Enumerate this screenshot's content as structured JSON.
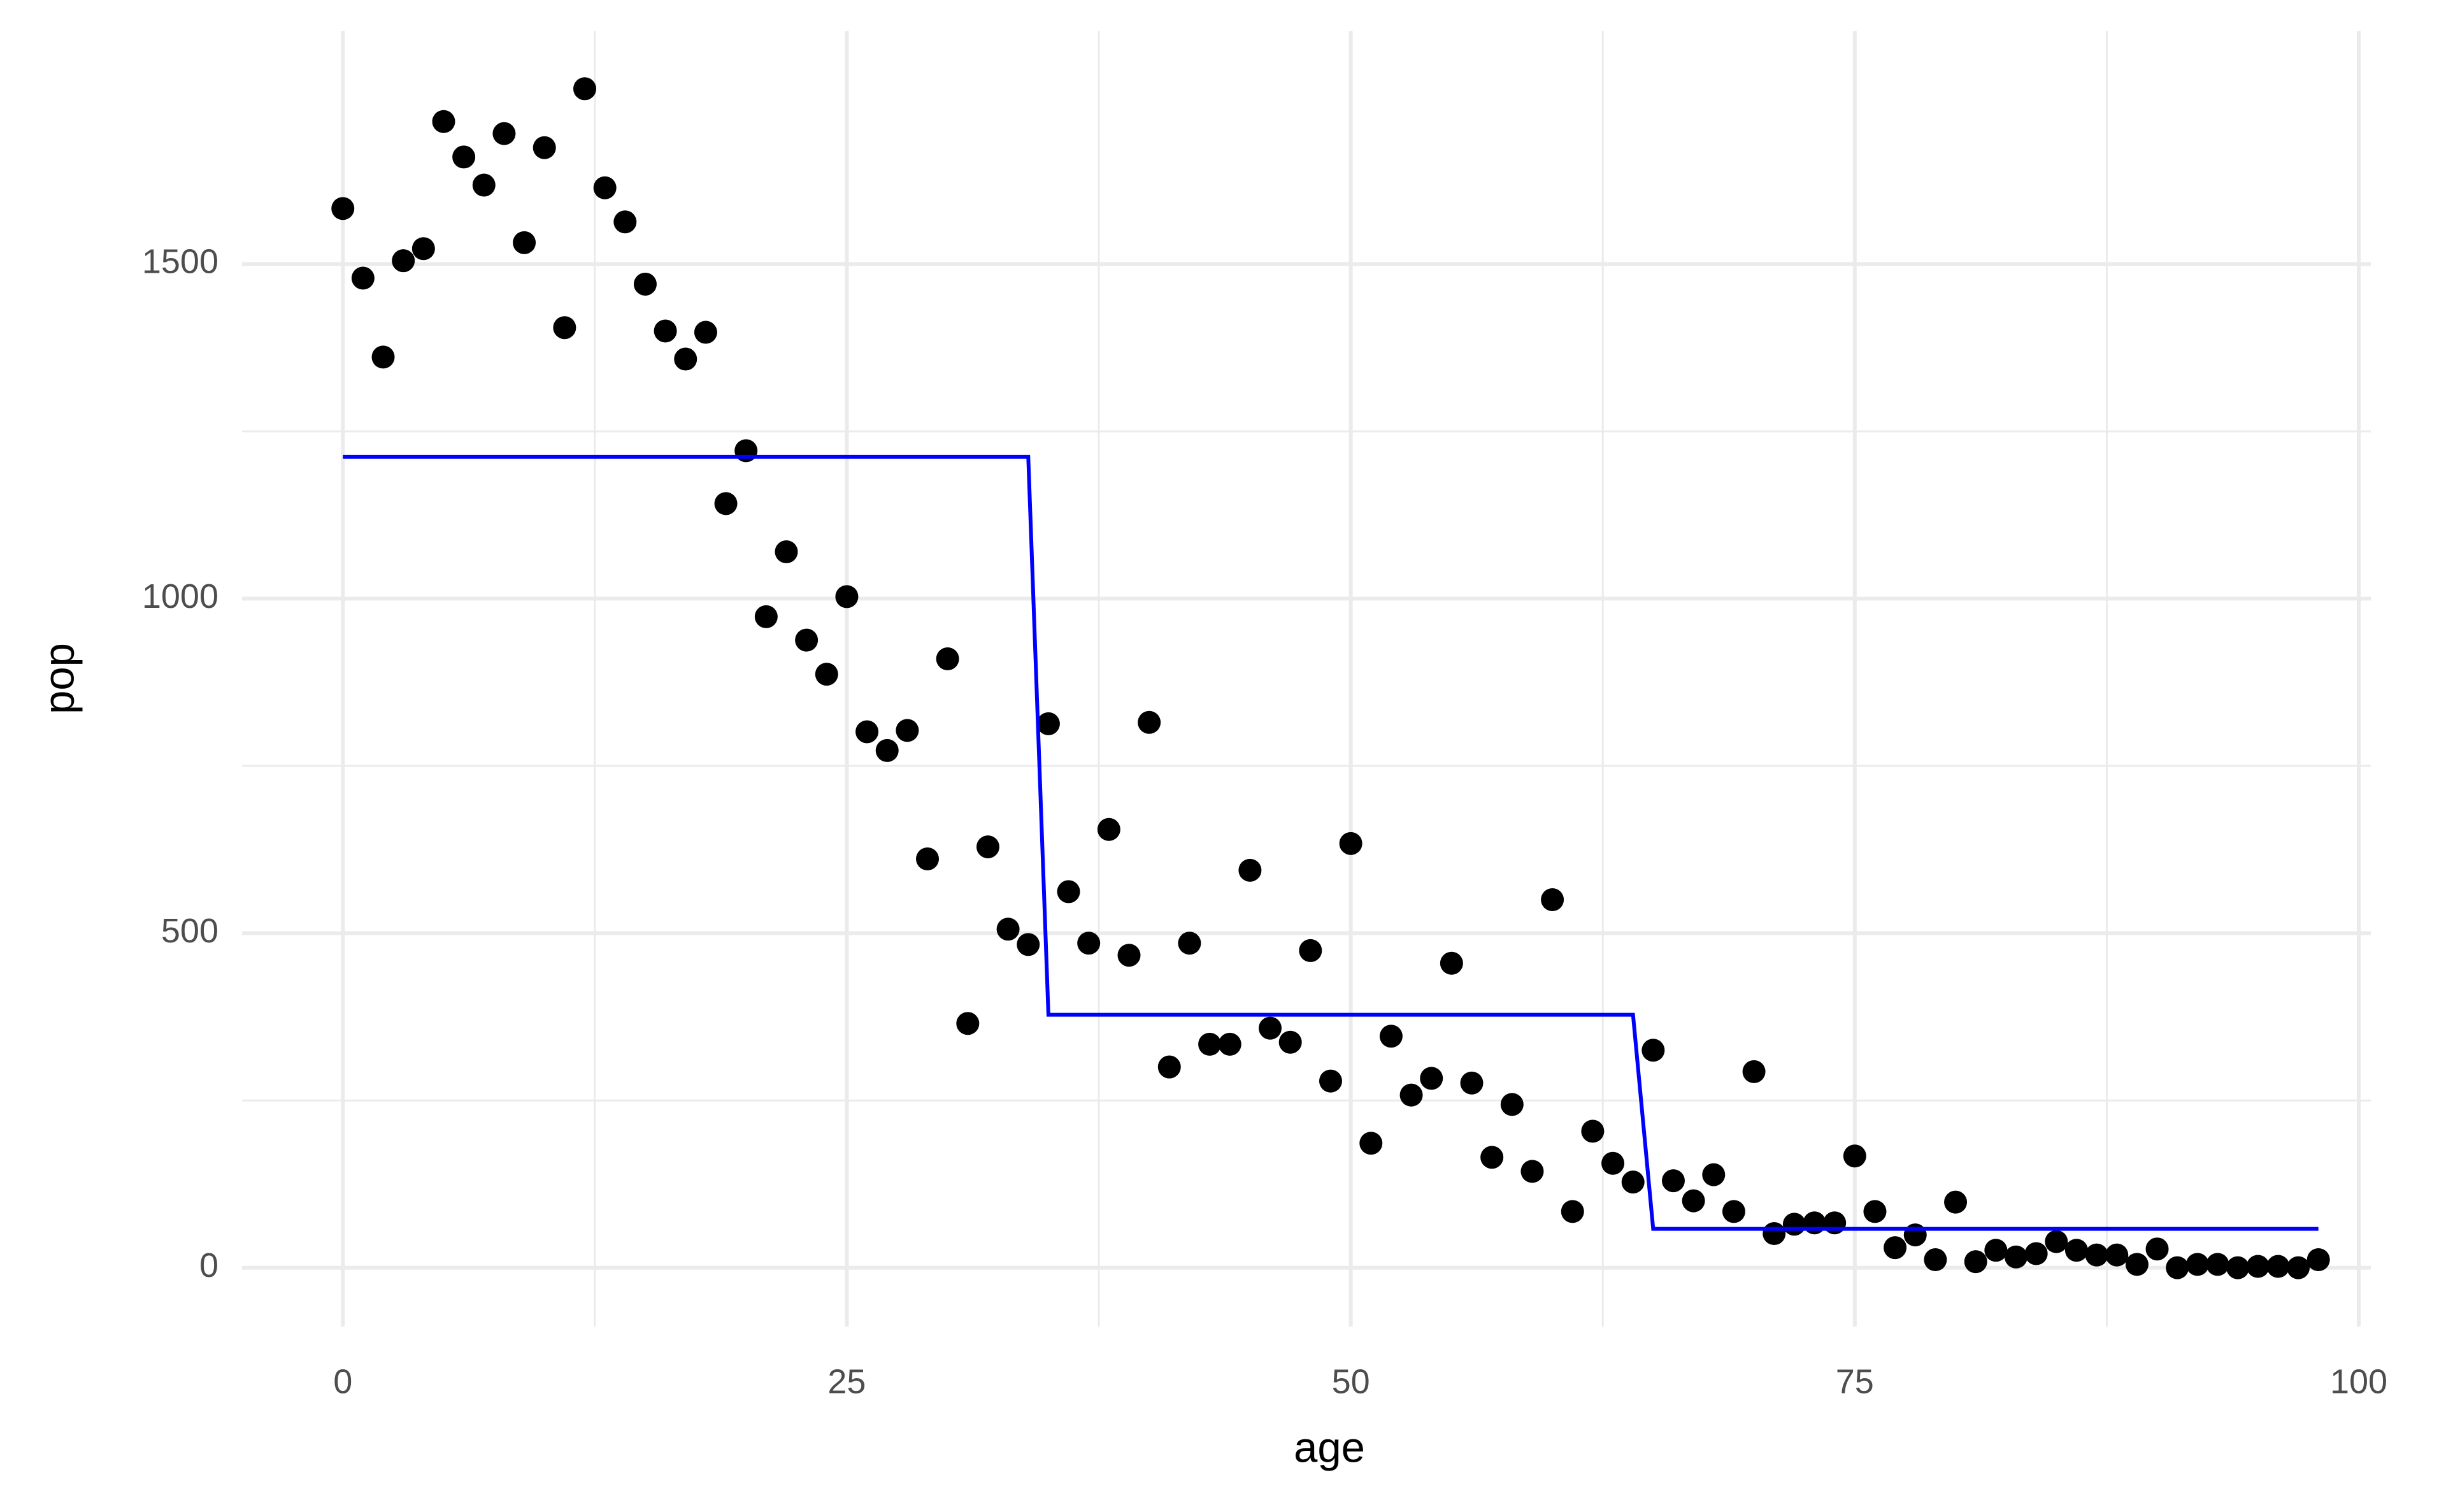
{
  "chart_data": {
    "type": "scatter",
    "x_label": "age",
    "y_label": "pop",
    "xlim": [
      -5,
      100.6
    ],
    "ylim": [
      -88,
      1848
    ],
    "xticks": [
      0,
      25,
      50,
      75,
      100
    ],
    "yticks": [
      0,
      500,
      1000,
      1500
    ],
    "xminorticks": [
      12.5,
      37.5,
      62.5,
      87.5
    ],
    "yminorticks": [
      250,
      750,
      1250
    ],
    "grid": true,
    "series": [
      {
        "type": "scatter",
        "color": "#000000",
        "x": [
          0,
          1,
          2,
          3,
          4,
          5,
          6,
          7,
          8,
          9,
          10,
          11,
          12,
          13,
          14,
          15,
          16,
          17,
          18,
          19,
          20,
          21,
          22,
          23,
          24,
          25,
          26,
          27,
          28,
          29,
          30,
          31,
          32,
          33,
          34,
          35,
          36,
          37,
          38,
          39,
          40,
          41,
          42,
          43,
          44,
          45,
          46,
          47,
          48,
          49,
          50,
          51,
          52,
          53,
          54,
          55,
          56,
          57,
          58,
          59,
          60,
          61,
          62,
          63,
          64,
          65,
          66,
          67,
          68,
          69,
          70,
          71,
          72,
          73,
          74,
          75,
          76,
          77,
          78,
          79,
          80,
          81,
          82,
          83,
          84,
          85,
          86,
          87,
          88,
          89,
          90,
          91,
          92,
          93,
          94,
          95,
          96,
          97,
          98
        ],
        "values": [
          1583,
          1479,
          1361,
          1505,
          1523,
          1713,
          1660,
          1618,
          1695,
          1532,
          1674,
          1405,
          1762,
          1614,
          1563,
          1470,
          1400,
          1358,
          1398,
          1142,
          1221,
          973,
          1070,
          938,
          887,
          1003,
          801,
          773,
          803,
          611,
          910,
          365,
          629,
          506,
          483,
          813,
          562,
          485,
          655,
          467,
          815,
          300,
          485,
          334,
          334,
          594,
          358,
          337,
          474,
          279,
          634,
          186,
          346,
          258,
          283,
          455,
          276,
          165,
          244,
          144,
          550,
          84,
          204,
          156,
          128,
          325,
          130,
          100,
          139,
          84,
          293,
          51,
          65,
          67,
          67,
          167,
          84,
          30,
          49,
          12,
          98,
          9,
          26,
          16,
          21,
          39,
          26,
          19,
          19,
          5,
          28,
          0,
          5,
          5,
          0,
          2,
          2,
          0,
          12
        ]
      },
      {
        "type": "line",
        "color": "#0000ff",
        "x": [
          0,
          34,
          35,
          64,
          65,
          98
        ],
        "values": [
          1212,
          1212,
          378,
          378,
          58,
          58
        ]
      }
    ]
  }
}
